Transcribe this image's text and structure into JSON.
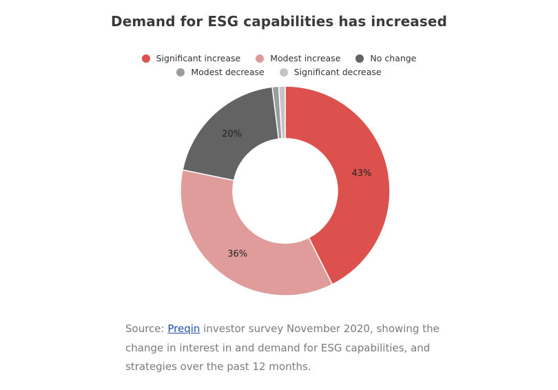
{
  "chart_data": {
    "type": "pie",
    "title": "Demand for ESG capabilities has increased",
    "donut": true,
    "legend_position": "top",
    "categories": [
      "Significant increase",
      "Modest increase",
      "No change",
      "Modest decrease",
      "Significant decrease"
    ],
    "values": [
      43,
      36,
      20,
      1,
      1
    ],
    "value_labels": [
      "43%",
      "36%",
      "20%",
      "",
      ""
    ],
    "colors": [
      "#dc514d",
      "#e09c9a",
      "#636363",
      "#9c9c9c",
      "#c4c4c4"
    ]
  },
  "caption": {
    "prefix": "Source: ",
    "link_text": "Preqin",
    "text": " investor survey November 2020, showing the change in interest in and demand for ESG capabilities, and strategies over the past 12 months."
  }
}
